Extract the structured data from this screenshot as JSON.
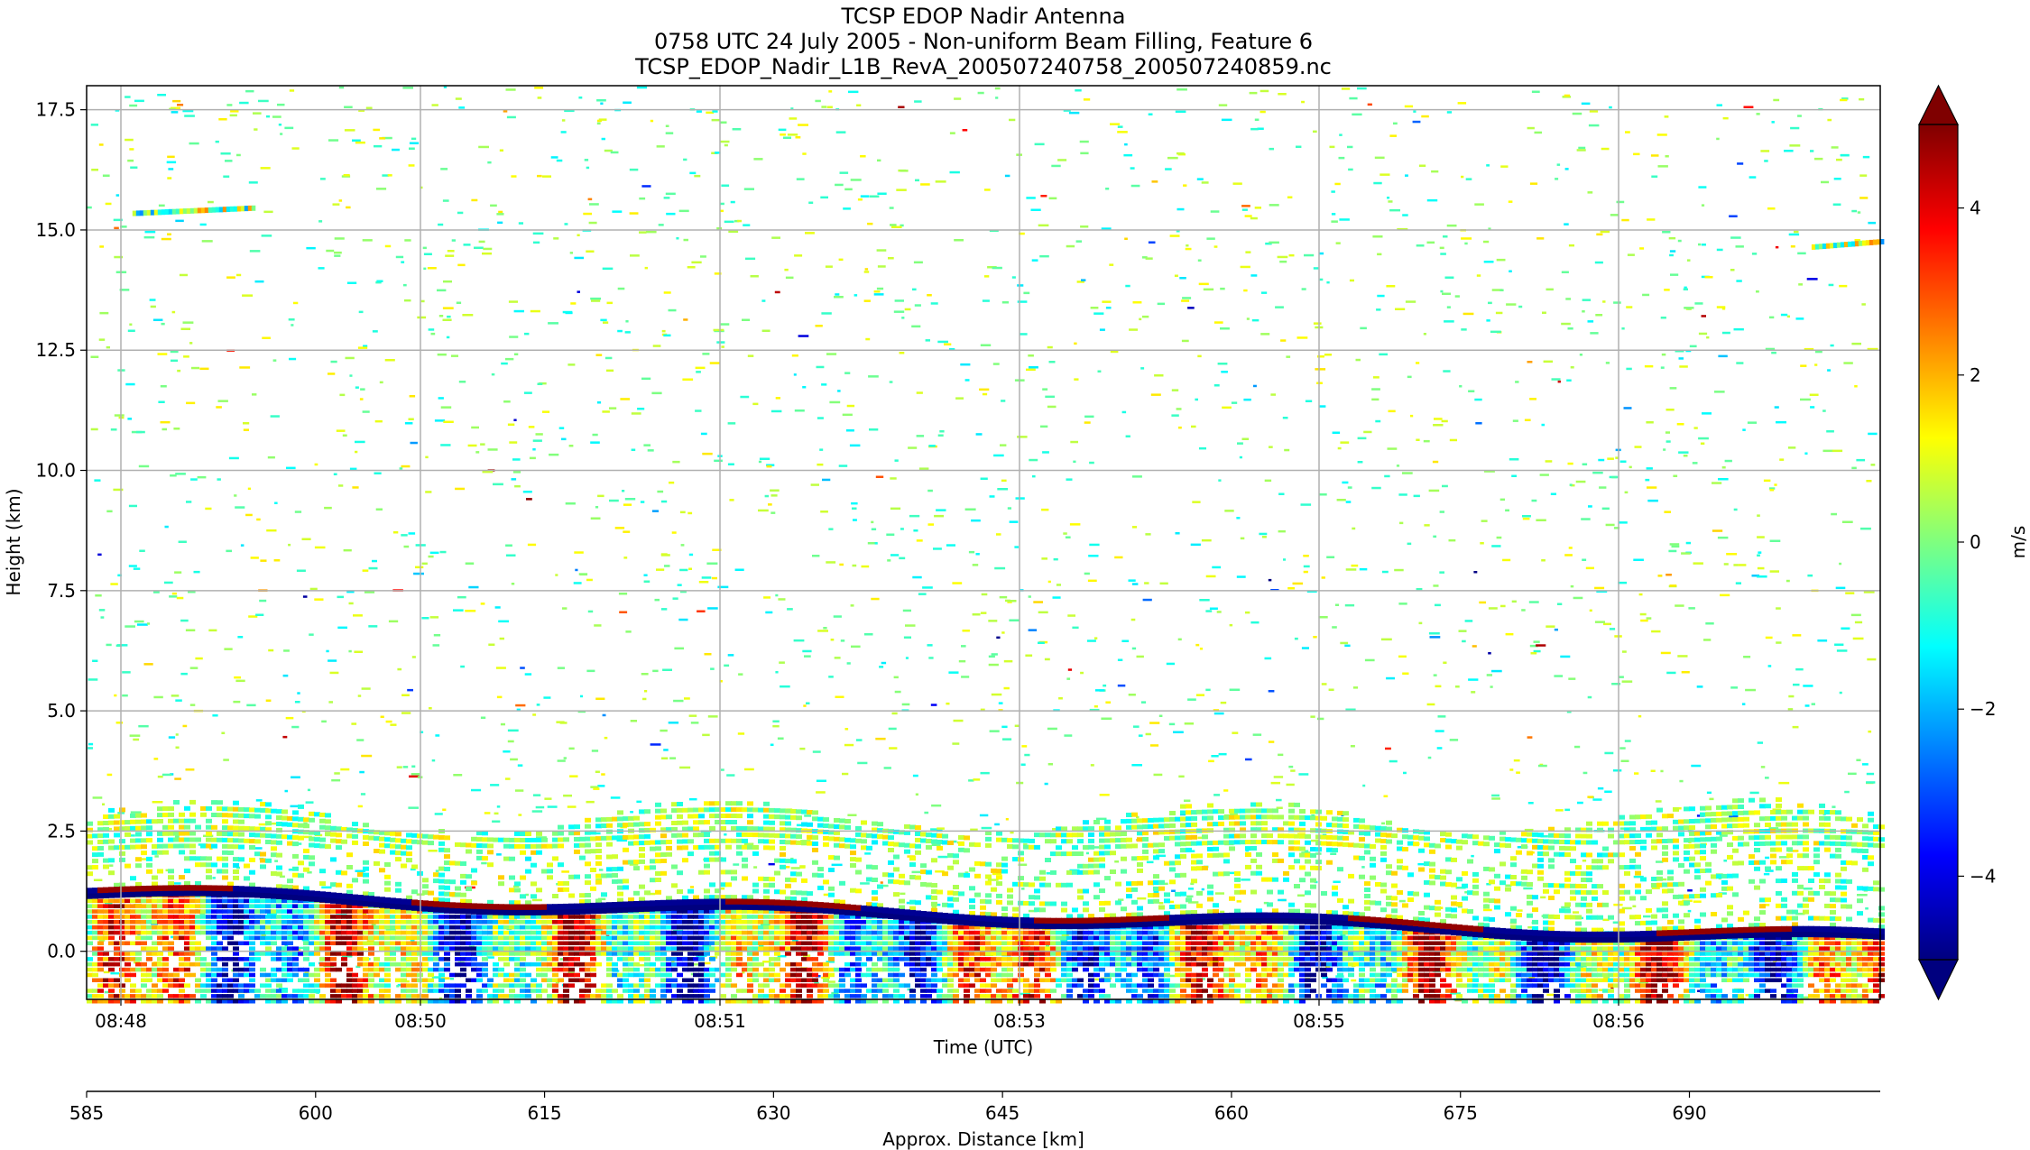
{
  "chart_data": {
    "type": "heatmap",
    "title": "TCSP EDOP Nadir Antenna",
    "subtitle": "0758 UTC 24 July 2005 - Non-uniform Beam Filling, Feature 6",
    "filename": "TCSP_EDOP_Nadir_L1B_RevA_200507240758_200507240859.nc",
    "xlabel": "Time (UTC)",
    "ylabel": "Height (km)",
    "x_tick_labels": [
      "08:48",
      "08:50",
      "08:51",
      "08:53",
      "08:55",
      "08:56"
    ],
    "y_ticks": [
      0.0,
      2.5,
      5.0,
      7.5,
      10.0,
      12.5,
      15.0,
      17.5
    ],
    "y_tick_labels": [
      "0.0",
      "2.5",
      "5.0",
      "7.5",
      "10.0",
      "12.5",
      "15.0",
      "17.5"
    ],
    "ylim": [
      -1.0,
      18.0
    ],
    "grid": true,
    "secondary_axis": {
      "label": "Approx. Distance [km]",
      "ticks": [
        585,
        600,
        615,
        630,
        645,
        660,
        675,
        690
      ],
      "tick_labels": [
        "585",
        "600",
        "615",
        "630",
        "645",
        "660",
        "675",
        "690"
      ],
      "xlim": [
        585,
        702.5
      ]
    },
    "colorbar": {
      "label": "m/s",
      "range": [
        -5,
        5
      ],
      "ticks": [
        -4,
        -2,
        0,
        2,
        4
      ],
      "tick_labels": [
        "−4",
        "−2",
        "0",
        "2",
        "4"
      ],
      "extend": "both",
      "colormap": "jet"
    },
    "features": {
      "surface_height_km": [
        1.2,
        0.25
      ],
      "echo_layer_top_km": 3.0,
      "high_streaks": [
        {
          "distance_km": [
            588,
            596
          ],
          "height_km": 15.4
        },
        {
          "distance_km": [
            698,
            702.5
          ],
          "height_km": 14.7
        }
      ]
    }
  },
  "colors": {
    "jet": [
      "#00007f",
      "#0000ff",
      "#007fff",
      "#00ffff",
      "#7fff7f",
      "#ffff00",
      "#ff7f00",
      "#ff0000",
      "#7f0000"
    ],
    "grid": "#b0b0b0",
    "axes": "#000000"
  }
}
